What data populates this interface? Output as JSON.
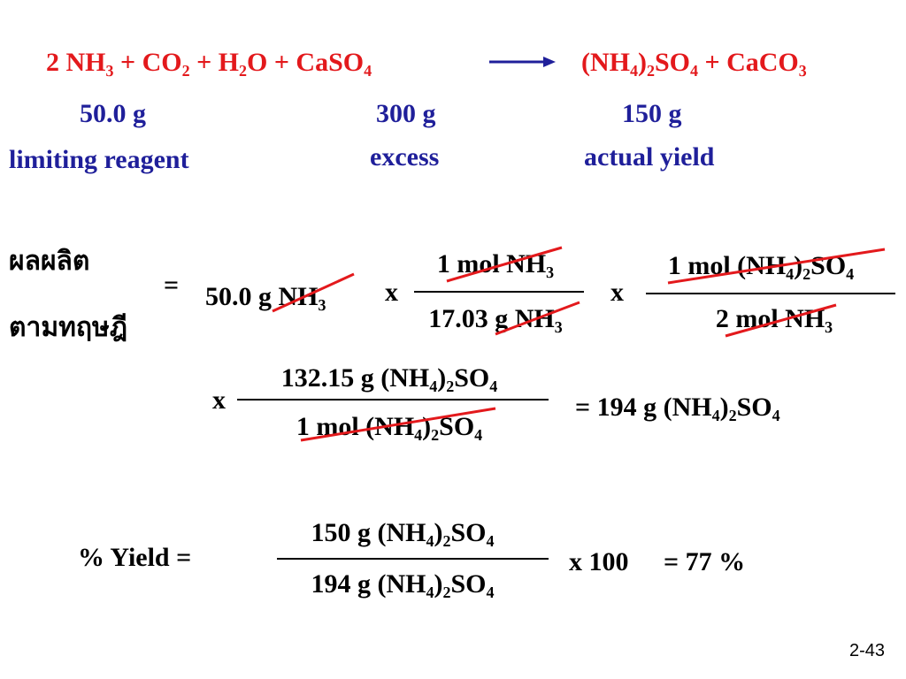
{
  "equation": {
    "reactants": "2 NH₃ + CO₂ + H₂O + CaSO₄",
    "products": "(NH₄)₂SO₄ + CaCO₃"
  },
  "masses": {
    "nh3": "50.0 g",
    "caso4": "300 g",
    "product": "150 g"
  },
  "roles": {
    "nh3": "limiting reagent",
    "caso4": "excess",
    "product": "actual yield"
  },
  "theoretical": {
    "label": [
      "ผลผลิต",
      "ตามทฤษฎี"
    ],
    "equals": "=",
    "start": "50.0 g NH₃",
    "times1": "x",
    "fraction1": {
      "numerator": "1 mol NH₃",
      "denominator": "17.03 g NH₃"
    },
    "times2": "x",
    "fraction2": {
      "numerator": "1 mol (NH₄)₂SO₄",
      "denominator": "2 mol NH₃"
    },
    "times3": "x",
    "fraction3": {
      "numerator": "132.15 g (NH₄)₂SO₄",
      "denominator": "1 mol (NH₄)₂SO₄"
    },
    "result": "= 194 g (NH₄)₂SO₄"
  },
  "percent_yield": {
    "label": "% Yield =",
    "fraction": {
      "numerator": "150 g (NH₄)₂SO₄",
      "denominator": "194 g (NH₄)₂SO₄"
    },
    "times": "x 100",
    "result": "= 77 %"
  },
  "slide_number": "2-43"
}
